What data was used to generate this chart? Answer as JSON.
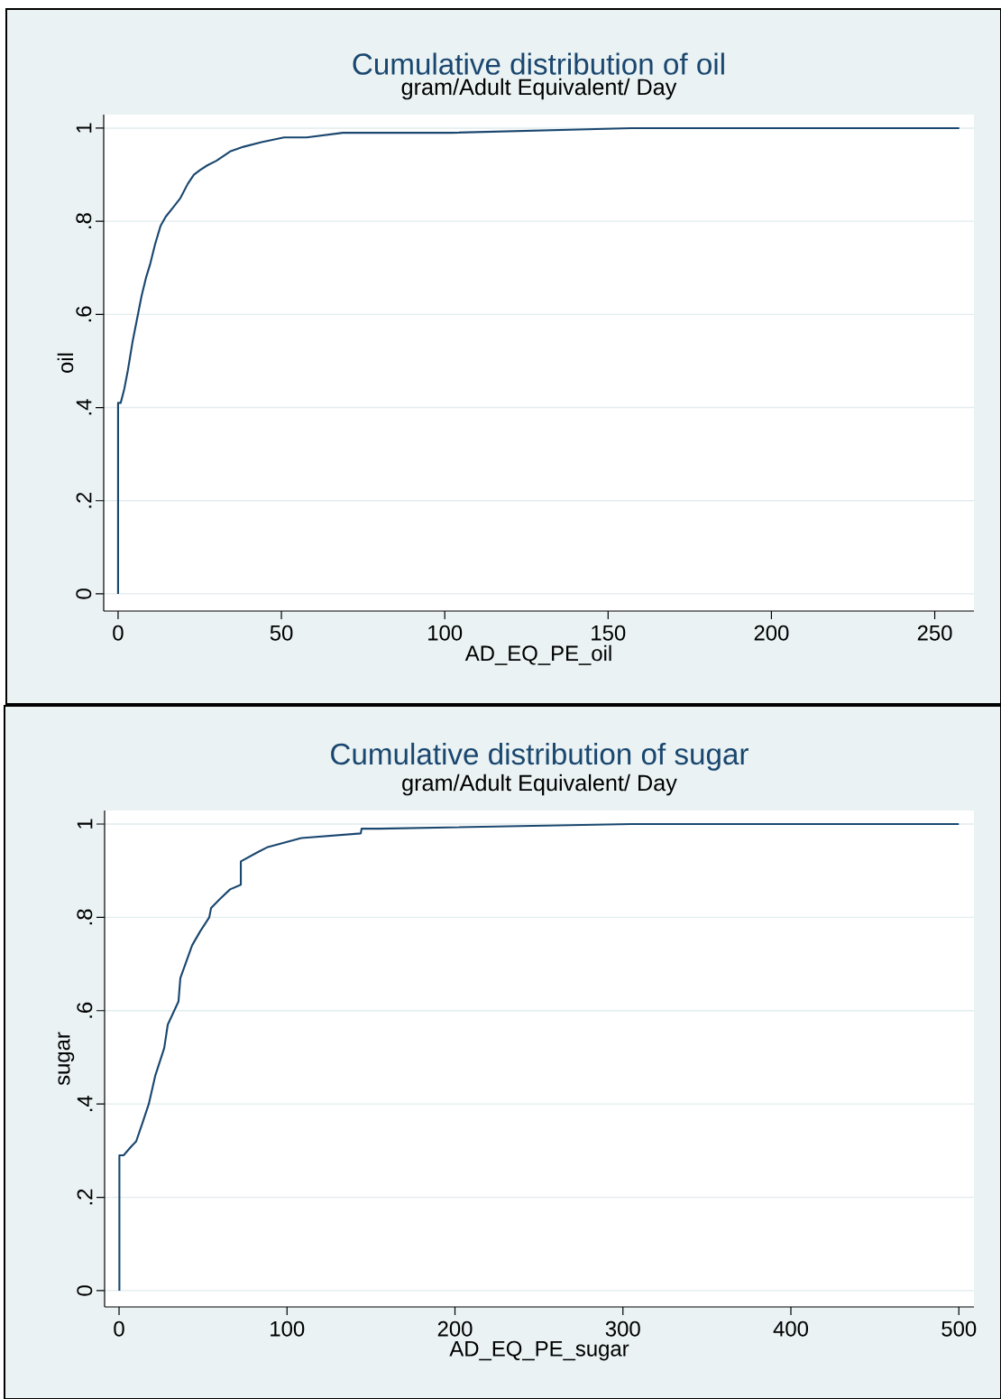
{
  "chart_data": [
    {
      "type": "line",
      "title": "Cumulative distribution of oil",
      "subtitle": "gram/Adult Equivalent/ Day",
      "xlabel": "AD_EQ_PE_oil",
      "ylabel": "oil",
      "color": "#1a476f",
      "grid": "y",
      "x": [
        0,
        0,
        0.8,
        1.9,
        3.0,
        4.4,
        5.8,
        7.2,
        8.6,
        9.9,
        11.3,
        13.0,
        14.6,
        16.9,
        19.1,
        21.3,
        23.2,
        25.1,
        27.3,
        30.1,
        34.3,
        38.4,
        43.9,
        50.8,
        57.7,
        68.8,
        82.6,
        101.9,
        157.2,
        257.5
      ],
      "values": [
        0,
        0.41,
        0.41,
        0.44,
        0.48,
        0.54,
        0.59,
        0.64,
        0.68,
        0.71,
        0.75,
        0.79,
        0.81,
        0.83,
        0.85,
        0.88,
        0.9,
        0.91,
        0.92,
        0.93,
        0.95,
        0.96,
        0.97,
        0.98,
        0.98,
        0.99,
        0.99,
        0.99,
        1.0,
        1.0
      ],
      "xlim": [
        -4.4,
        262
      ],
      "ylim": [
        -0.037,
        1.029
      ],
      "xticks": [
        0,
        50,
        100,
        150,
        200,
        250
      ],
      "yticks": [
        0,
        {
          "value": 0.2,
          "label": ".2"
        },
        {
          "value": 0.4,
          "label": ".4"
        },
        {
          "value": 0.6,
          "label": ".6"
        },
        {
          "value": 0.8,
          "label": ".8"
        },
        1
      ]
    },
    {
      "type": "line",
      "title": "Cumulative distribution of sugar",
      "subtitle": "gram/Adult Equivalent/ Day",
      "xlabel": "AD_EQ_PE_sugar",
      "ylabel": "sugar",
      "color": "#1a476f",
      "grid": "y",
      "x": [
        0.2,
        0.2,
        2.7,
        7.5,
        10.2,
        14,
        17.7,
        21.5,
        26.9,
        29,
        35.4,
        36.5,
        43.5,
        48.3,
        53.7,
        54.8,
        60.2,
        66.1,
        72.5,
        72.5,
        82.7,
        88.1,
        108.5,
        143.9,
        144.4,
        154.7,
        305,
        500
      ],
      "values": [
        0,
        0.29,
        0.29,
        0.31,
        0.32,
        0.36,
        0.4,
        0.46,
        0.52,
        0.57,
        0.62,
        0.67,
        0.74,
        0.77,
        0.8,
        0.82,
        0.84,
        0.86,
        0.87,
        0.92,
        0.94,
        0.95,
        0.97,
        0.98,
        0.99,
        0.99,
        1.0,
        1.0
      ],
      "xlim": [
        -8.6,
        509
      ],
      "ylim": [
        -0.035,
        1.029
      ],
      "xticks": [
        0,
        100,
        200,
        300,
        400,
        500
      ],
      "yticks": [
        0,
        {
          "value": 0.2,
          "label": ".2"
        },
        {
          "value": 0.4,
          "label": ".4"
        },
        {
          "value": 0.6,
          "label": ".6"
        },
        {
          "value": 0.8,
          "label": ".8"
        },
        1
      ]
    }
  ]
}
